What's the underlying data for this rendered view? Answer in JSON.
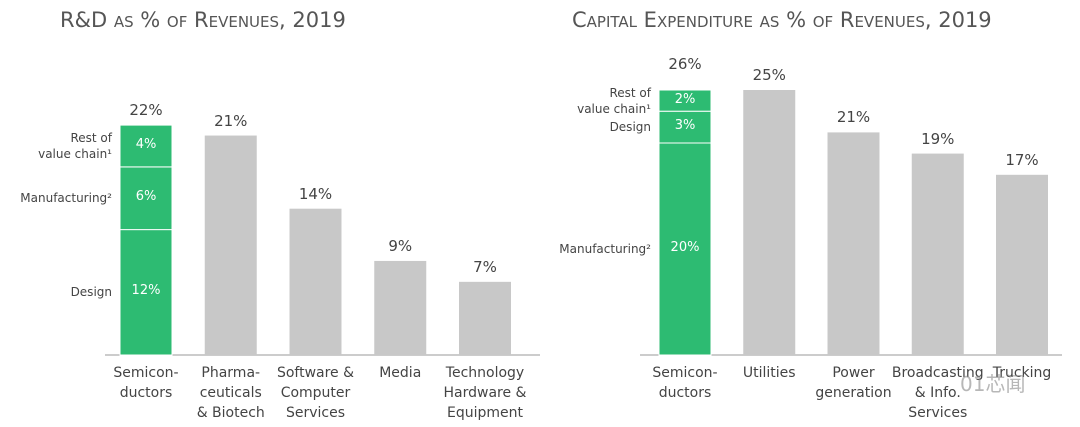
{
  "chart_data": [
    {
      "type": "stacked-first-bar",
      "title": "R&D as % of Revenues, 2019",
      "categories": [
        "Semicon-\nductors",
        "Pharma-\nceuticals\n& Biotech",
        "Software &\nComputer\nServices",
        "Media",
        "Technology\nHardware &\nEquipment"
      ],
      "values": [
        22,
        21,
        14,
        9,
        7
      ],
      "value_labels": [
        "22%",
        "21%",
        "14%",
        "9%",
        "7%"
      ],
      "color": "#c8c8c8",
      "segment_color": "#2dbb72",
      "segments": [
        {
          "name": "Design",
          "value": 12,
          "value_label": "12%"
        },
        {
          "name": "Manufacturing²",
          "value": 6,
          "value_label": "6%"
        },
        {
          "name": "Rest of\nvalue chain¹",
          "value": 4,
          "value_label": "4%"
        }
      ]
    },
    {
      "type": "stacked-first-bar",
      "title": "Capital Expenditure as % of Revenues, 2019",
      "categories": [
        "Semicon-\nductors",
        "Utilities",
        "Power\ngeneration",
        "Broadcasting\n& Info.\nServices",
        "Trucking"
      ],
      "values": [
        26,
        25,
        21,
        19,
        17
      ],
      "value_labels": [
        "26%",
        "25%",
        "21%",
        "19%",
        "17%"
      ],
      "color": "#c8c8c8",
      "segment_color": "#2dbb72",
      "segments": [
        {
          "name": "Manufacturing²",
          "value": 20,
          "value_label": "20%"
        },
        {
          "name": "Design",
          "value": 3,
          "value_label": "3%"
        },
        {
          "name": "Rest of\nvalue chain¹",
          "value": 2,
          "value_label": "2%"
        }
      ]
    }
  ],
  "watermark": "01芯闻"
}
